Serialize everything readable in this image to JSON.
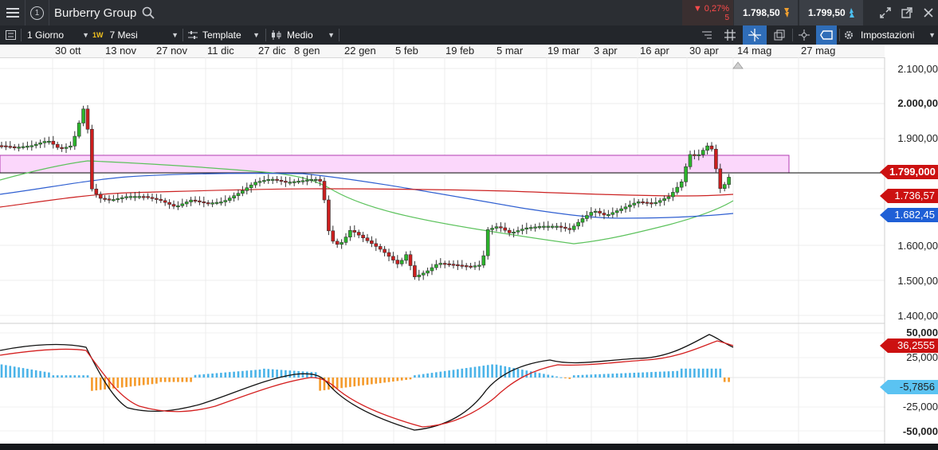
{
  "header": {
    "instrument": "Burberry Group",
    "change_pct": "▼ 0,27%",
    "change_sub": "5",
    "sell_price": "1.798,50",
    "buy_price": "1.799,50",
    "info_glyph": "1"
  },
  "toolbar": {
    "interval": "1 Giorno",
    "period_badge": "1W",
    "period": "7 Mesi",
    "template": "Template",
    "chart_style": "Medio",
    "settings": "Impostazioni"
  },
  "date_axis": [
    "30 ott",
    "13 nov",
    "27 nov",
    "11 dic",
    "27 dic",
    "8 gen",
    "22 gen",
    "5 feb",
    "19 feb",
    "5 mar",
    "19 mar",
    "3 apr",
    "16 apr",
    "30 apr",
    "14 mag",
    "27 mag"
  ],
  "price_axis": [
    "2.100,00",
    "2.000,00",
    "1.900,00",
    "1.600,00",
    "1.500,00",
    "1.400,00"
  ],
  "price_tags": {
    "last": "1.799,000",
    "ma_red": "1.736,57",
    "ma_blue": "1.682,45"
  },
  "macd_axis": [
    "50,000",
    "25,000",
    "-25,000",
    "-50,000"
  ],
  "macd_tags": {
    "macd": "36,2555",
    "histogram": "-5,7856"
  },
  "colors": {
    "up": "#2bb52b",
    "down": "#cc1f1f",
    "ma_green": "#5cc25c",
    "ma_blue": "#2f5fd1",
    "ma_red": "#cc2222",
    "zone_fill": "#fbd7fb",
    "zone_border": "#b23bb2",
    "hist_pos": "#4ab3e8",
    "hist_neg": "#f59a2a",
    "price_tag_last": "#cc1111",
    "price_tag_blue": "#1f5fd6",
    "tag_cyan": "#5bc3f2"
  },
  "icons": {
    "menu": "hamburger-icon",
    "search": "search-icon",
    "settings": "gear-icon"
  }
}
